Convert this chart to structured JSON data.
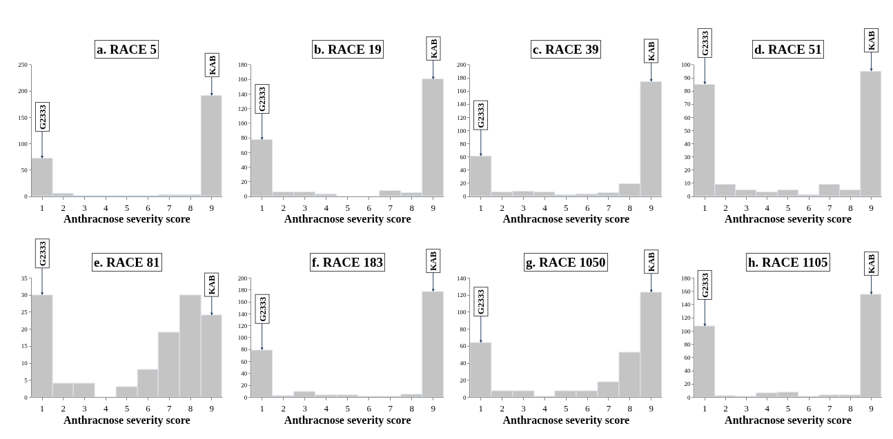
{
  "chart_data": [
    {
      "type": "bar",
      "title": "a. RACE 5",
      "xlabel": "Anthracnose severity score",
      "categories": [
        "1",
        "2",
        "3",
        "4",
        "5",
        "6",
        "7",
        "8",
        "9"
      ],
      "values": [
        72,
        6,
        2,
        1,
        1,
        1,
        3,
        3,
        191
      ],
      "color": "#c4c4c4",
      "ylim": [
        0,
        250
      ],
      "yticks": [
        0,
        50,
        100,
        150,
        200,
        250
      ],
      "annotations": [
        {
          "text": "G2333",
          "x": "1",
          "y": 72
        },
        {
          "text": "KAB",
          "x": "9",
          "y": 191
        }
      ]
    },
    {
      "type": "bar",
      "title": "b. RACE 19",
      "xlabel": "Anthracnose severity score",
      "categories": [
        "1",
        "2",
        "3",
        "4",
        "5",
        "6",
        "7",
        "8",
        "9"
      ],
      "values": [
        77,
        6,
        6,
        3,
        0,
        0,
        8,
        5,
        160
      ],
      "color": "#c4c4c4",
      "ylim": [
        0,
        180
      ],
      "yticks": [
        0,
        20,
        40,
        60,
        80,
        100,
        120,
        140,
        160,
        180
      ],
      "annotations": [
        {
          "text": "G2333",
          "x": "1",
          "y": 77
        },
        {
          "text": "KAB",
          "x": "9",
          "y": 160
        }
      ]
    },
    {
      "type": "bar",
      "title": "c. RACE 39",
      "xlabel": "Anthracnose severity score",
      "categories": [
        "1",
        "2",
        "3",
        "4",
        "5",
        "6",
        "7",
        "8",
        "9"
      ],
      "values": [
        61,
        7,
        8,
        7,
        2,
        3,
        5,
        19,
        174
      ],
      "color": "#c4c4c4",
      "ylim": [
        0,
        200
      ],
      "yticks": [
        0,
        20,
        40,
        60,
        80,
        100,
        120,
        140,
        160,
        180,
        200
      ],
      "annotations": [
        {
          "text": "G2333",
          "x": "1",
          "y": 61
        },
        {
          "text": "KAB",
          "x": "9",
          "y": 174
        }
      ]
    },
    {
      "type": "bar",
      "title": "d. RACE 51",
      "xlabel": "Anthracnose severity score",
      "categories": [
        "1",
        "2",
        "3",
        "4",
        "5",
        "6",
        "7",
        "8",
        "9"
      ],
      "values": [
        85,
        9,
        5,
        3,
        5,
        1,
        9,
        5,
        95
      ],
      "color": "#c4c4c4",
      "ylim": [
        0,
        100
      ],
      "yticks": [
        0,
        10,
        20,
        30,
        40,
        50,
        60,
        70,
        80,
        90,
        100
      ],
      "annotations": [
        {
          "text": "G2333",
          "x": "1",
          "y": 85
        },
        {
          "text": "KAB",
          "x": "9",
          "y": 95
        }
      ]
    },
    {
      "type": "bar",
      "title": "e. RACE 81",
      "xlabel": "Anthracnose severity score",
      "categories": [
        "1",
        "2",
        "3",
        "4",
        "5",
        "6",
        "7",
        "8",
        "9"
      ],
      "values": [
        30,
        4,
        4,
        0,
        3,
        8,
        19,
        30,
        24
      ],
      "color": "#c4c4c4",
      "ylim": [
        0,
        35
      ],
      "yticks": [
        0,
        5,
        10,
        15,
        20,
        25,
        30,
        35
      ],
      "annotations": [
        {
          "text": "G2333",
          "x": "1",
          "y": 30
        },
        {
          "text": "KAB",
          "x": "9",
          "y": 24
        }
      ]
    },
    {
      "type": "bar",
      "title": "f. RACE 183",
      "xlabel": "Anthracnose severity score",
      "categories": [
        "1",
        "2",
        "3",
        "4",
        "5",
        "6",
        "7",
        "8",
        "9"
      ],
      "values": [
        79,
        2,
        9,
        3,
        4,
        1,
        1,
        5,
        177
      ],
      "color": "#c4c4c4",
      "ylim": [
        0,
        200
      ],
      "yticks": [
        0,
        20,
        40,
        60,
        80,
        100,
        120,
        140,
        160,
        180,
        200
      ],
      "annotations": [
        {
          "text": "G2333",
          "x": "1",
          "y": 79
        },
        {
          "text": "KAB",
          "x": "9",
          "y": 177
        }
      ]
    },
    {
      "type": "bar",
      "title": "g. RACE 1050",
      "xlabel": "Anthracnose severity score",
      "categories": [
        "1",
        "2",
        "3",
        "4",
        "5",
        "6",
        "7",
        "8",
        "9"
      ],
      "values": [
        64,
        7,
        7,
        1,
        7,
        7,
        18,
        53,
        123
      ],
      "color": "#c4c4c4",
      "ylim": [
        0,
        140
      ],
      "yticks": [
        0,
        20,
        40,
        60,
        80,
        100,
        120,
        140
      ],
      "annotations": [
        {
          "text": "G2333",
          "x": "1",
          "y": 64
        },
        {
          "text": "KAB",
          "x": "9",
          "y": 123
        }
      ]
    },
    {
      "type": "bar",
      "title": "h. RACE 1105",
      "xlabel": "Anthracnose severity score",
      "categories": [
        "1",
        "2",
        "3",
        "4",
        "5",
        "6",
        "7",
        "8",
        "9"
      ],
      "values": [
        107,
        2,
        1,
        6,
        7,
        1,
        3,
        3,
        155
      ],
      "color": "#c4c4c4",
      "ylim": [
        0,
        180
      ],
      "yticks": [
        0,
        20,
        40,
        60,
        80,
        100,
        120,
        140,
        160,
        180
      ],
      "annotations": [
        {
          "text": "G2333",
          "x": "1",
          "y": 107
        },
        {
          "text": "KAB",
          "x": "9",
          "y": 155
        }
      ]
    }
  ]
}
